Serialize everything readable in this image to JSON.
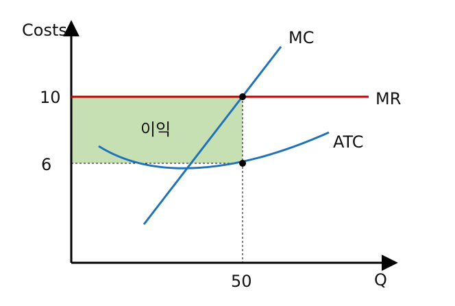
{
  "axes": {
    "y_label": "Costs",
    "x_label": "Q",
    "y_ticks": [
      "10",
      "6"
    ],
    "x_ticks": [
      "50"
    ]
  },
  "curves": {
    "mc": "MC",
    "mr": "MR",
    "atc": "ATC"
  },
  "profit_area": {
    "label": "이익",
    "color": "#c6e0b4"
  },
  "colors": {
    "mr_line": "#c00000",
    "curve_blue": "#1f72b8",
    "axis": "#000000"
  }
}
